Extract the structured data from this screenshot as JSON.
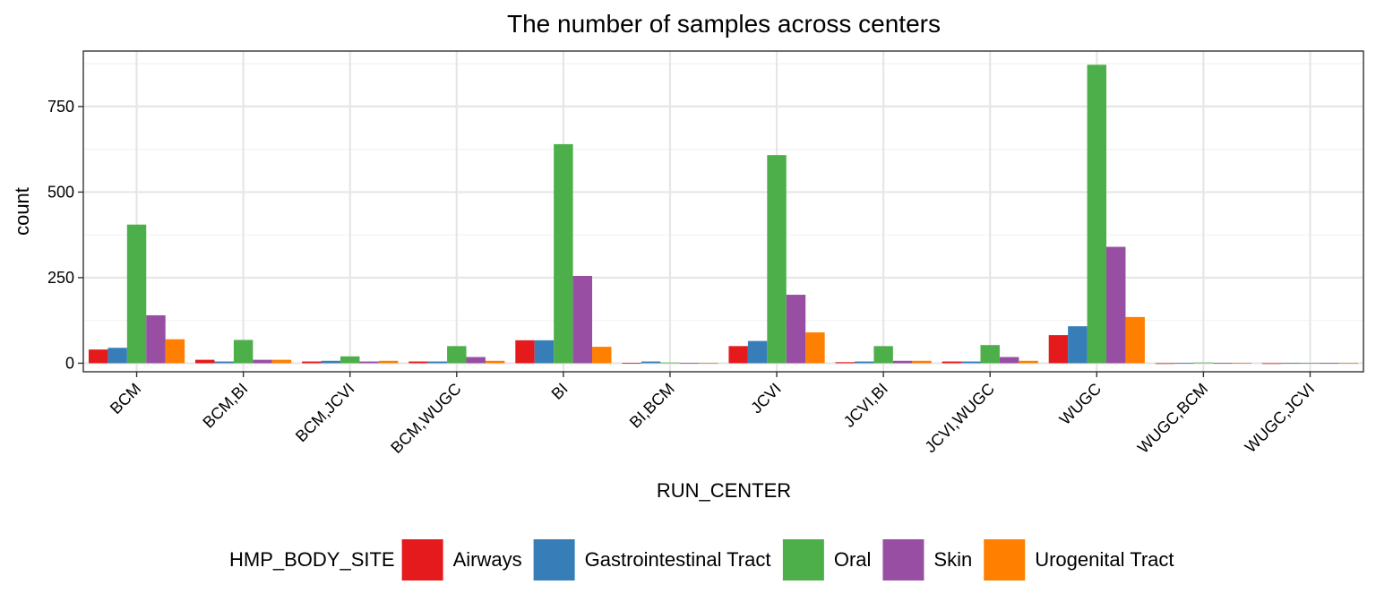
{
  "chart_data": {
    "type": "bar",
    "title": "The number of samples across centers",
    "xlabel": "RUN_CENTER",
    "ylabel": "count",
    "ylim": [
      -25,
      912
    ],
    "yticks": [
      0,
      250,
      500,
      750
    ],
    "grid": true,
    "legend_position": "bottom",
    "legend_title": "HMP_BODY_SITE",
    "categories": [
      "BCM",
      "BCM,BI",
      "BCM,JCVI",
      "BCM,WUGC",
      "BI",
      "BI,BCM",
      "JCVI",
      "JCVI,BI",
      "JCVI,WUGC",
      "WUGC",
      "WUGC,BCM",
      "WUGC,JCVI"
    ],
    "series": [
      {
        "name": "Airways",
        "color": "#E41A1C",
        "values": [
          40,
          10,
          5,
          5,
          67,
          1,
          50,
          3,
          5,
          82,
          0,
          0
        ]
      },
      {
        "name": "Gastrointestinal Tract",
        "color": "#377EB8",
        "values": [
          45,
          5,
          7,
          5,
          67,
          5,
          65,
          5,
          5,
          108,
          1,
          1
        ]
      },
      {
        "name": "Oral",
        "color": "#4DAF4A",
        "values": [
          405,
          68,
          20,
          50,
          640,
          2,
          608,
          50,
          53,
          872,
          2,
          1
        ]
      },
      {
        "name": "Skin",
        "color": "#984EA3",
        "values": [
          140,
          10,
          5,
          18,
          255,
          1,
          200,
          7,
          18,
          340,
          1,
          1
        ]
      },
      {
        "name": "Urogenital Tract",
        "color": "#FF7F00",
        "values": [
          70,
          10,
          7,
          7,
          48,
          1,
          90,
          7,
          7,
          135,
          1,
          1
        ]
      }
    ]
  }
}
